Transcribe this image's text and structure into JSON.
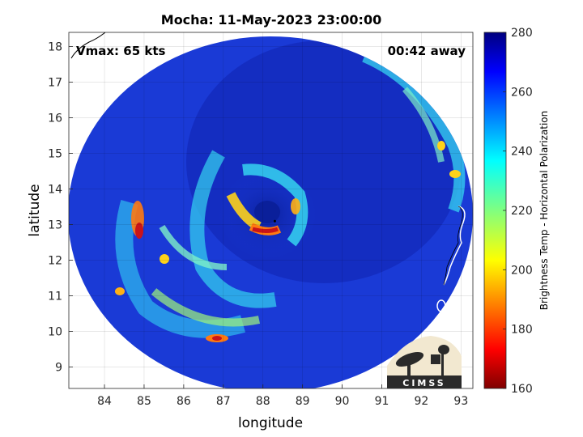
{
  "chart_data": {
    "type": "heatmap",
    "title": "Mocha: 11-May-2023 23:00:00",
    "xlabel": "longitude",
    "ylabel": "latitude",
    "xlim": [
      83.1,
      93.3
    ],
    "ylim": [
      8.4,
      18.4
    ],
    "x_ticks": [
      84,
      85,
      86,
      87,
      88,
      89,
      90,
      91,
      92,
      93
    ],
    "y_ticks": [
      9,
      10,
      11,
      12,
      13,
      14,
      15,
      16,
      17,
      18
    ],
    "grid": true,
    "storm_center": {
      "lon": 88.3,
      "lat": 13.1
    },
    "colorbar": {
      "label": "Brightness Temp - Horizontal Polarization",
      "range": [
        160,
        280
      ],
      "ticks": [
        160,
        180,
        200,
        220,
        240,
        260,
        280
      ],
      "colormap": "jet"
    },
    "annotations": {
      "vmax": "Vmax: 65 kts",
      "time_away": "00:42 away"
    },
    "logo_text": "CIMSS",
    "colors": {
      "background_blue": "#1a3ad6",
      "eye_dark_blue": "#0a1f9a",
      "band_cyan": "#35d4f0",
      "core_red": "#c8141a"
    }
  }
}
